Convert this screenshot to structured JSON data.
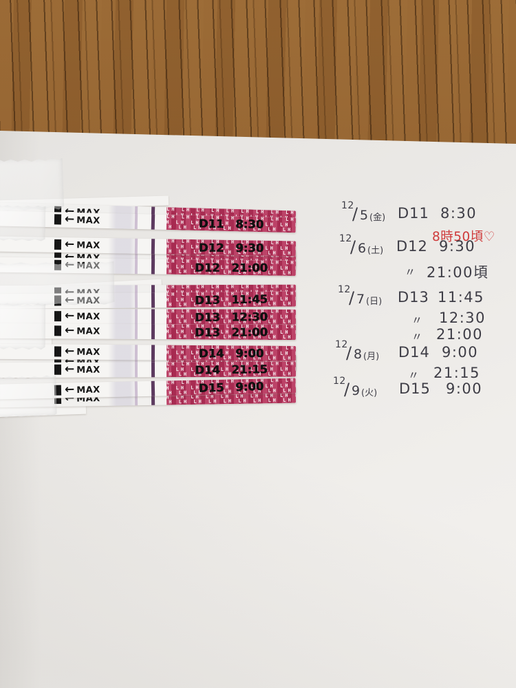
{
  "strips": {
    "max_label": "MAX",
    "arrow": "←",
    "pattern_text": "LH",
    "items": [
      {
        "label": "D11 8:30"
      },
      {
        "label": "D12 9:30"
      },
      {
        "label": "D12 21:00"
      },
      {
        "label": "D13 11:45"
      },
      {
        "label": "D13 12:30"
      },
      {
        "label": "D13 21:00"
      },
      {
        "label": "D14 9:00"
      },
      {
        "label": "D14 21:15"
      },
      {
        "label": "D15 9:00"
      }
    ]
  },
  "log": {
    "slash": "/",
    "lines": [
      {
        "date_month": "12",
        "date_day": "5",
        "weekday": "(金)",
        "cycle": "D11",
        "time": "8:30"
      },
      {
        "red_note": "8時50頃♡"
      },
      {
        "date_month": "12",
        "date_day": "6",
        "weekday": "(土)",
        "cycle": "D12",
        "time": "9:30"
      },
      {
        "ditto": "〃",
        "time": "21:00頃"
      },
      {
        "date_month": "12",
        "date_day": "7",
        "weekday": "(日)",
        "cycle": "D13",
        "time": "11:45"
      },
      {
        "ditto": "〃",
        "time": "12:30"
      },
      {
        "ditto": "〃",
        "time": "21:00"
      },
      {
        "date_month": "12",
        "date_day": "8",
        "weekday": "(月)",
        "cycle": "D14",
        "time": "9:00"
      },
      {
        "ditto": "〃",
        "time": "21:15"
      },
      {
        "date_month": "12",
        "date_day": "9",
        "weekday": "(火)",
        "cycle": "D15",
        "time": "9:00"
      }
    ]
  },
  "colors": {
    "wood_brown": "#8a5a2a",
    "paper_white": "#eceae7",
    "strip_pink": "#b42e57",
    "control_line_purple": "#5d3b60",
    "marker_black": "#141414",
    "pencil_gray": "#3e3d46",
    "red_note": "#cf3b3b"
  }
}
